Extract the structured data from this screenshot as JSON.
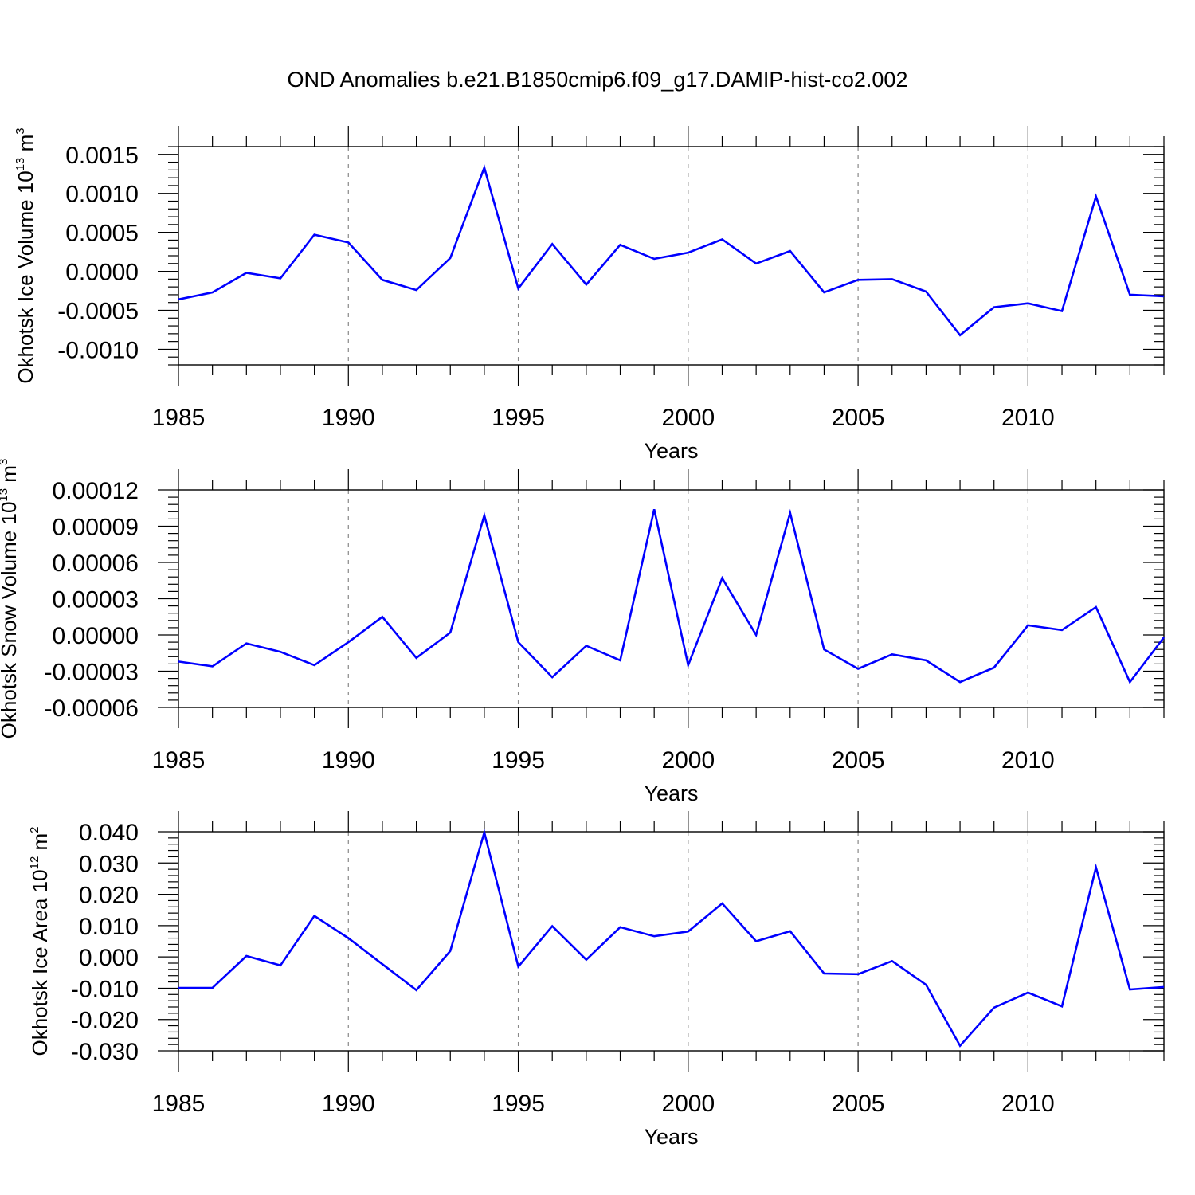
{
  "title": "OND Anomalies b.e21.B1850cmip6.f09_g17.DAMIP-hist-co2.002",
  "colors": {
    "line": "#0000ff",
    "axis": "#000000",
    "grid": "#888888"
  },
  "chart_data": [
    {
      "type": "line",
      "ylabel_text": "Okhotsk Ice Volume 10",
      "ylabel_exp": "13",
      "ylabel_unit": "m",
      "ylabel_unit_exp": "3",
      "xlabel": "Years",
      "xlim": [
        1985,
        2014
      ],
      "ylim": [
        -0.0012,
        0.0016
      ],
      "xticks": [
        1985,
        1990,
        1995,
        2000,
        2005,
        2010
      ],
      "xtick_labels": [
        "1985",
        "1990",
        "1995",
        "2000",
        "2005",
        "2010"
      ],
      "yticks": [
        -0.001,
        -0.0005,
        0.0,
        0.0005,
        0.001,
        0.0015
      ],
      "ytick_labels": [
        "-0.0010",
        "-0.0005",
        "0.0000",
        "0.0005",
        "0.0010",
        "0.0015"
      ],
      "dashed_vlines": [
        1990,
        1995,
        2000,
        2005,
        2010
      ],
      "series": [
        {
          "name": "Okhotsk Ice Volume",
          "x": [
            1985,
            1986,
            1987,
            1988,
            1989,
            1990,
            1991,
            1992,
            1993,
            1994,
            1995,
            1996,
            1997,
            1998,
            1999,
            2000,
            2001,
            2002,
            2003,
            2004,
            2005,
            2006,
            2007,
            2008,
            2009,
            2010,
            2011,
            2012,
            2013,
            2014
          ],
          "values": [
            -0.00036,
            -0.00027,
            -2e-05,
            -9e-05,
            0.00047,
            0.00037,
            -0.00011,
            -0.00024,
            0.00017,
            0.00133,
            -0.00022,
            0.00035,
            -0.00017,
            0.00034,
            0.00016,
            0.00024,
            0.00041,
            0.0001,
            0.00026,
            -0.00027,
            -0.00011,
            -0.0001,
            -0.00026,
            -0.00082,
            -0.00046,
            -0.00041,
            -0.00051,
            0.00096,
            -0.0003,
            -0.00032
          ]
        }
      ]
    },
    {
      "type": "line",
      "ylabel_text": "Okhotsk Snow Volume 10",
      "ylabel_exp": "13",
      "ylabel_unit": "m",
      "ylabel_unit_exp": "3",
      "xlabel": "Years",
      "xlim": [
        1985,
        2014
      ],
      "ylim": [
        -6e-05,
        0.00012
      ],
      "xticks": [
        1985,
        1990,
        1995,
        2000,
        2005,
        2010
      ],
      "xtick_labels": [
        "1985",
        "1990",
        "1995",
        "2000",
        "2005",
        "2010"
      ],
      "yticks": [
        -6e-05,
        -3e-05,
        0.0,
        3e-05,
        6e-05,
        9e-05,
        0.00012
      ],
      "ytick_labels": [
        "-0.00006",
        "-0.00003",
        "0.00000",
        "0.00003",
        "0.00006",
        "0.00009",
        "0.00012"
      ],
      "dashed_vlines": [
        1990,
        1995,
        2000,
        2005,
        2010
      ],
      "series": [
        {
          "name": "Okhotsk Snow Volume",
          "x": [
            1985,
            1986,
            1987,
            1988,
            1989,
            1990,
            1991,
            1992,
            1993,
            1994,
            1995,
            1996,
            1997,
            1998,
            1999,
            2000,
            2001,
            2002,
            2003,
            2004,
            2005,
            2006,
            2007,
            2008,
            2009,
            2010,
            2011,
            2012,
            2013,
            2014
          ],
          "values": [
            -2.2e-05,
            -2.6e-05,
            -7e-06,
            -1.4e-05,
            -2.5e-05,
            -6e-06,
            1.5e-05,
            -1.9e-05,
            2e-06,
            9.9e-05,
            -6e-06,
            -3.5e-05,
            -9e-06,
            -2.1e-05,
            0.000104,
            -2.5e-05,
            4.7e-05,
            0.0,
            0.000101,
            -1.2e-05,
            -2.8e-05,
            -1.6e-05,
            -2.1e-05,
            -3.9e-05,
            -2.7e-05,
            8e-06,
            4e-06,
            2.3e-05,
            -3.9e-05,
            -2e-06
          ]
        }
      ]
    },
    {
      "type": "line",
      "ylabel_text": "Okhotsk Ice Area 10",
      "ylabel_exp": "12",
      "ylabel_unit": "m",
      "ylabel_unit_exp": "2",
      "xlabel": "Years",
      "xlim": [
        1985,
        2014
      ],
      "ylim": [
        -0.03,
        0.04
      ],
      "xticks": [
        1985,
        1990,
        1995,
        2000,
        2005,
        2010
      ],
      "xtick_labels": [
        "1985",
        "1990",
        "1995",
        "2000",
        "2005",
        "2010"
      ],
      "yticks": [
        -0.03,
        -0.02,
        -0.01,
        0.0,
        0.01,
        0.02,
        0.03,
        0.04
      ],
      "ytick_labels": [
        "-0.030",
        "-0.020",
        "-0.010",
        "0.000",
        "0.010",
        "0.020",
        "0.030",
        "0.040"
      ],
      "dashed_vlines": [
        1990,
        1995,
        2000,
        2005,
        2010
      ],
      "series": [
        {
          "name": "Okhotsk Ice Area",
          "x": [
            1985,
            1986,
            1987,
            1988,
            1989,
            1990,
            1991,
            1992,
            1993,
            1994,
            1995,
            1996,
            1997,
            1998,
            1999,
            2000,
            2001,
            2002,
            2003,
            2004,
            2005,
            2006,
            2007,
            2008,
            2009,
            2010,
            2011,
            2012,
            2013,
            2014
          ],
          "values": [
            -0.0099,
            -0.0099,
            0.0003,
            -0.0027,
            0.0131,
            0.006,
            -0.0023,
            -0.0106,
            0.0019,
            0.0398,
            -0.0031,
            0.0098,
            -0.0009,
            0.0095,
            0.0066,
            0.0081,
            0.0171,
            0.005,
            0.0082,
            -0.0053,
            -0.0055,
            -0.0013,
            -0.0089,
            -0.0284,
            -0.0162,
            -0.0114,
            -0.0158,
            0.0286,
            -0.0104,
            -0.0096
          ]
        }
      ]
    }
  ]
}
